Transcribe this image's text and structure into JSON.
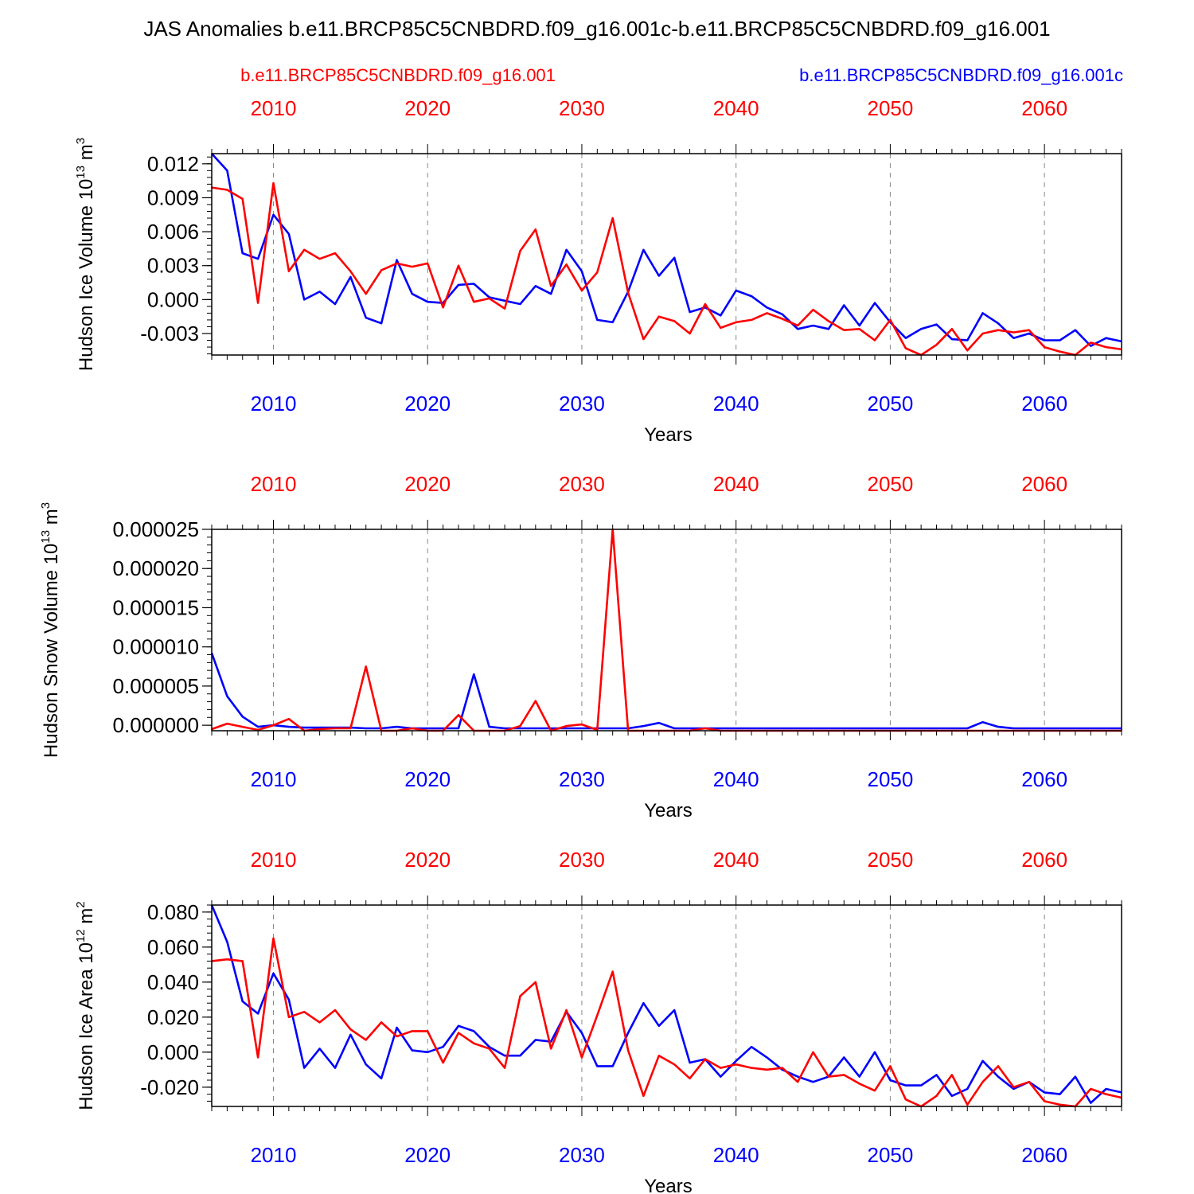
{
  "title": "JAS Anomalies b.e11.BRCP85C5CNBDRD.f09_g16.001c-b.e11.BRCP85C5CNBDRD.f09_g16.001",
  "legend": {
    "left": {
      "label": "b.e11.BRCP85C5CNBDRD.f09_g16.001",
      "color": "#ff0000"
    },
    "right": {
      "label": "b.e11.BRCP85C5CNBDRD.f09_g16.001c",
      "color": "#0000ff"
    }
  },
  "colors": {
    "red": "#ff0000",
    "blue": "#0000ff",
    "axis": "#000000",
    "grid": "#888888"
  },
  "chart_data": [
    {
      "type": "line",
      "title": "",
      "ylabel": "Hudson Ice Volume 10",
      "ylabel_exp": "13",
      "ylabel_unit": " m",
      "ylabel_unit_exp": "3",
      "xlabel": "Years",
      "xlim": [
        2006,
        2065
      ],
      "ylim": [
        -0.0049,
        0.0129
      ],
      "yticks": [
        -0.003,
        0.0,
        0.003,
        0.006,
        0.009,
        0.012
      ],
      "ytick_labels": [
        "-0.003",
        "0.000",
        "0.003",
        "0.006",
        "0.009",
        "0.012"
      ],
      "yminor_step": 0.0006,
      "xticks": [
        2010,
        2020,
        2030,
        2040,
        2050,
        2060
      ],
      "xtick_labels": [
        "2010",
        "2020",
        "2030",
        "2040",
        "2050",
        "2060"
      ],
      "x_start": 2006,
      "series": [
        {
          "name": "b.e11.BRCP85C5CNBDRD.f09_g16.001c",
          "color": "#0000ff",
          "values": [
            0.0129,
            0.0114,
            0.0041,
            0.0036,
            0.0075,
            0.0058,
            0.0,
            0.0007,
            -0.0004,
            0.002,
            -0.0016,
            -0.0021,
            0.0035,
            0.0005,
            -0.0002,
            -0.0003,
            0.0013,
            0.0014,
            0.0002,
            -0.0001,
            -0.0004,
            0.0012,
            0.0005,
            0.0044,
            0.0025,
            -0.0018,
            -0.002,
            0.0007,
            0.0044,
            0.0021,
            0.0037,
            -0.0011,
            -0.0007,
            -0.0014,
            0.0008,
            0.0003,
            -0.0007,
            -0.0013,
            -0.0026,
            -0.0023,
            -0.0026,
            -0.0005,
            -0.0023,
            -0.0003,
            -0.002,
            -0.0034,
            -0.0026,
            -0.0022,
            -0.0035,
            -0.0036,
            -0.0012,
            -0.0021,
            -0.0034,
            -0.003,
            -0.0036,
            -0.0036,
            -0.0027,
            -0.0041,
            -0.0034,
            -0.0037
          ]
        },
        {
          "name": "b.e11.BRCP85C5CNBDRD.f09_g16.001",
          "color": "#ff0000",
          "values": [
            0.0099,
            0.0097,
            0.0089,
            -0.0003,
            0.0103,
            0.0025,
            0.0044,
            0.0036,
            0.0041,
            0.0025,
            0.0005,
            0.0026,
            0.0032,
            0.0029,
            0.0032,
            -0.0007,
            0.003,
            -0.0002,
            0.0001,
            -0.0008,
            0.0043,
            0.0062,
            0.0012,
            0.0031,
            0.0008,
            0.0024,
            0.0072,
            0.0006,
            -0.0035,
            -0.0015,
            -0.0019,
            -0.003,
            -0.0004,
            -0.0025,
            -0.002,
            -0.0018,
            -0.0012,
            -0.0017,
            -0.0023,
            -0.0009,
            -0.0019,
            -0.0027,
            -0.0026,
            -0.0036,
            -0.0018,
            -0.0043,
            -0.0049,
            -0.004,
            -0.0026,
            -0.0045,
            -0.003,
            -0.0027,
            -0.0029,
            -0.0027,
            -0.0042,
            -0.0046,
            -0.0049,
            -0.0038,
            -0.0042,
            -0.0044
          ]
        }
      ]
    },
    {
      "type": "line",
      "title": "",
      "ylabel": "Hudson Snow Volume 10",
      "ylabel_exp": "13",
      "ylabel_unit": " m",
      "ylabel_unit_exp": "3",
      "xlabel": "Years",
      "xlim": [
        2006,
        2065
      ],
      "ylim": [
        -7e-07,
        2.5e-05
      ],
      "yticks": [
        0.0,
        5e-06,
        1e-05,
        1.5e-05,
        2e-05,
        2.5e-05
      ],
      "ytick_labels": [
        "0.000000",
        "0.000005",
        "0.000010",
        "0.000015",
        "0.000020",
        "0.000025"
      ],
      "yminor_step": 1e-06,
      "xticks": [
        2010,
        2020,
        2030,
        2040,
        2050,
        2060
      ],
      "xtick_labels": [
        "2010",
        "2020",
        "2030",
        "2040",
        "2050",
        "2060"
      ],
      "x_start": 2006,
      "series": [
        {
          "name": "b.e11.BRCP85C5CNBDRD.f09_g16.001c",
          "color": "#0000ff",
          "values": [
            9.2e-06,
            3.7e-06,
            1.1e-06,
            -2e-07,
            0.0,
            -2e-07,
            -3e-07,
            -3e-07,
            -3e-07,
            -3e-07,
            -4e-07,
            -4e-07,
            -2e-07,
            -4e-07,
            -4e-07,
            -4e-07,
            -4e-07,
            6.5e-06,
            -2e-07,
            -4e-07,
            -4e-07,
            -4e-07,
            -4e-07,
            -4e-07,
            -4e-07,
            -4e-07,
            -4e-07,
            -4e-07,
            -1e-07,
            3e-07,
            -4e-07,
            -4e-07,
            -4e-07,
            -4e-07,
            -4e-07,
            -4e-07,
            -4e-07,
            -4e-07,
            -4e-07,
            -4e-07,
            -4e-07,
            -4e-07,
            -4e-07,
            -4e-07,
            -4e-07,
            -4e-07,
            -4e-07,
            -4e-07,
            -4e-07,
            -4e-07,
            4e-07,
            -2e-07,
            -4e-07,
            -4e-07,
            -4e-07,
            -4e-07,
            -4e-07,
            -4e-07,
            -4e-07,
            -4e-07
          ]
        },
        {
          "name": "b.e11.BRCP85C5CNBDRD.f09_g16.001",
          "color": "#ff0000",
          "values": [
            -5e-07,
            2e-07,
            -2e-07,
            -6e-07,
            0.0,
            8e-07,
            -7e-07,
            -5e-07,
            -4e-07,
            -4e-07,
            7.5e-06,
            -7e-07,
            -7e-07,
            -4e-07,
            -7e-07,
            -7e-07,
            1.3e-06,
            -7e-07,
            -7e-07,
            -7e-07,
            -1e-07,
            3.1e-06,
            -7e-07,
            -1e-07,
            1e-07,
            -6e-07,
            2.5e-05,
            -7e-07,
            -7e-07,
            -7e-07,
            -7e-07,
            -7e-07,
            -4e-07,
            -7e-07,
            -7e-07,
            -7e-07,
            -7e-07,
            -7e-07,
            -7e-07,
            -7e-07,
            -7e-07,
            -7e-07,
            -7e-07,
            -7e-07,
            -7e-07,
            -7e-07,
            -7e-07,
            -7e-07,
            -7e-07,
            -7e-07,
            -7e-07,
            -7e-07,
            -7e-07,
            -7e-07,
            -7e-07,
            -7e-07,
            -7e-07,
            -7e-07,
            -7e-07,
            -7e-07
          ]
        }
      ]
    },
    {
      "type": "line",
      "title": "",
      "ylabel": "Hudson Ice Area 10",
      "ylabel_exp": "12",
      "ylabel_unit": " m",
      "ylabel_unit_exp": "2",
      "xlabel": "Years",
      "xlim": [
        2006,
        2065
      ],
      "ylim": [
        -0.031,
        0.084
      ],
      "yticks": [
        -0.02,
        0.0,
        0.02,
        0.04,
        0.06,
        0.08
      ],
      "ytick_labels": [
        "-0.020",
        "0.000",
        "0.020",
        "0.040",
        "0.060",
        "0.080"
      ],
      "yminor_step": 0.004,
      "xticks": [
        2010,
        2020,
        2030,
        2040,
        2050,
        2060
      ],
      "xtick_labels": [
        "2010",
        "2020",
        "2030",
        "2040",
        "2050",
        "2060"
      ],
      "x_start": 2006,
      "series": [
        {
          "name": "b.e11.BRCP85C5CNBDRD.f09_g16.001c",
          "color": "#0000ff",
          "values": [
            0.084,
            0.063,
            0.029,
            0.022,
            0.045,
            0.03,
            -0.009,
            0.002,
            -0.009,
            0.01,
            -0.007,
            -0.015,
            0.014,
            0.001,
            0.0,
            0.003,
            0.015,
            0.012,
            0.003,
            -0.002,
            -0.002,
            0.007,
            0.006,
            0.023,
            0.011,
            -0.008,
            -0.008,
            0.011,
            0.028,
            0.015,
            0.024,
            -0.006,
            -0.004,
            -0.014,
            -0.005,
            0.003,
            -0.003,
            -0.01,
            -0.014,
            -0.017,
            -0.014,
            -0.003,
            -0.014,
            0.0,
            -0.016,
            -0.019,
            -0.019,
            -0.013,
            -0.025,
            -0.021,
            -0.005,
            -0.014,
            -0.021,
            -0.017,
            -0.023,
            -0.024,
            -0.014,
            -0.029,
            -0.021,
            -0.023
          ]
        },
        {
          "name": "b.e11.BRCP85C5CNBDRD.f09_g16.001",
          "color": "#ff0000",
          "values": [
            0.052,
            0.053,
            0.052,
            -0.003,
            0.065,
            0.02,
            0.023,
            0.017,
            0.024,
            0.013,
            0.007,
            0.017,
            0.009,
            0.012,
            0.012,
            -0.006,
            0.011,
            0.005,
            0.002,
            -0.009,
            0.032,
            0.04,
            0.002,
            0.024,
            -0.003,
            0.021,
            0.046,
            0.001,
            -0.025,
            -0.002,
            -0.007,
            -0.015,
            -0.004,
            -0.009,
            -0.007,
            -0.009,
            -0.01,
            -0.009,
            -0.017,
            0.0,
            -0.014,
            -0.013,
            -0.018,
            -0.022,
            -0.008,
            -0.027,
            -0.031,
            -0.025,
            -0.013,
            -0.03,
            -0.017,
            -0.008,
            -0.02,
            -0.017,
            -0.028,
            -0.03,
            -0.031,
            -0.021,
            -0.024,
            -0.026
          ]
        }
      ]
    }
  ]
}
